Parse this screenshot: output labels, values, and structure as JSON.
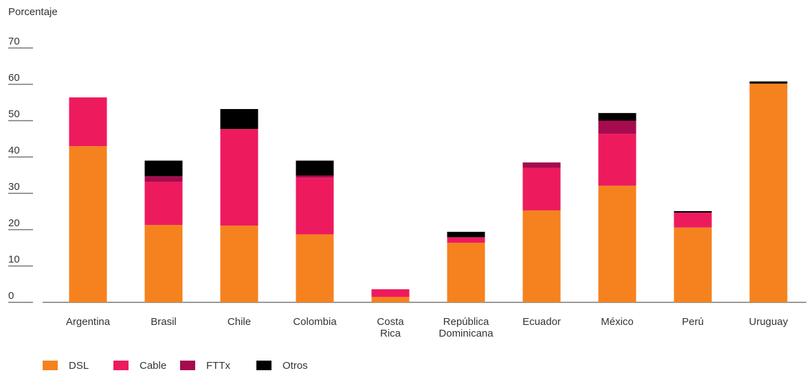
{
  "chart_data": {
    "type": "stacked_bar",
    "y_label": "Porcentaje",
    "categories": [
      "Argentina",
      "Brasil",
      "Chile",
      "Colombia",
      "Costa Rica",
      "República Dominicana",
      "Ecuador",
      "México",
      "Perú",
      "Uruguay"
    ],
    "series": [
      {
        "name": "DSL",
        "color": "#f5821f",
        "values": [
          43,
          21.3,
          21.1,
          18.7,
          1.5,
          16.4,
          25.3,
          32.1,
          20.6,
          60.2
        ]
      },
      {
        "name": "Cable",
        "color": "#ee1a5e",
        "values": [
          13.4,
          11.9,
          26.6,
          15.6,
          2.1,
          1.5,
          11.7,
          14.3,
          4.1,
          0
        ]
      },
      {
        "name": "FTTx",
        "color": "#a50b4e",
        "values": [
          0,
          1.5,
          0,
          0.6,
          0,
          0,
          1.5,
          3.6,
          0,
          0
        ]
      },
      {
        "name": "Otros",
        "color": "#000000",
        "values": [
          0,
          4.3,
          5.5,
          4.1,
          0,
          1.5,
          0,
          2.1,
          0.4,
          0.6
        ]
      }
    ],
    "ylim": [
      0,
      70
    ],
    "yticks": [
      0,
      10,
      20,
      30,
      40,
      50,
      60,
      70
    ]
  }
}
